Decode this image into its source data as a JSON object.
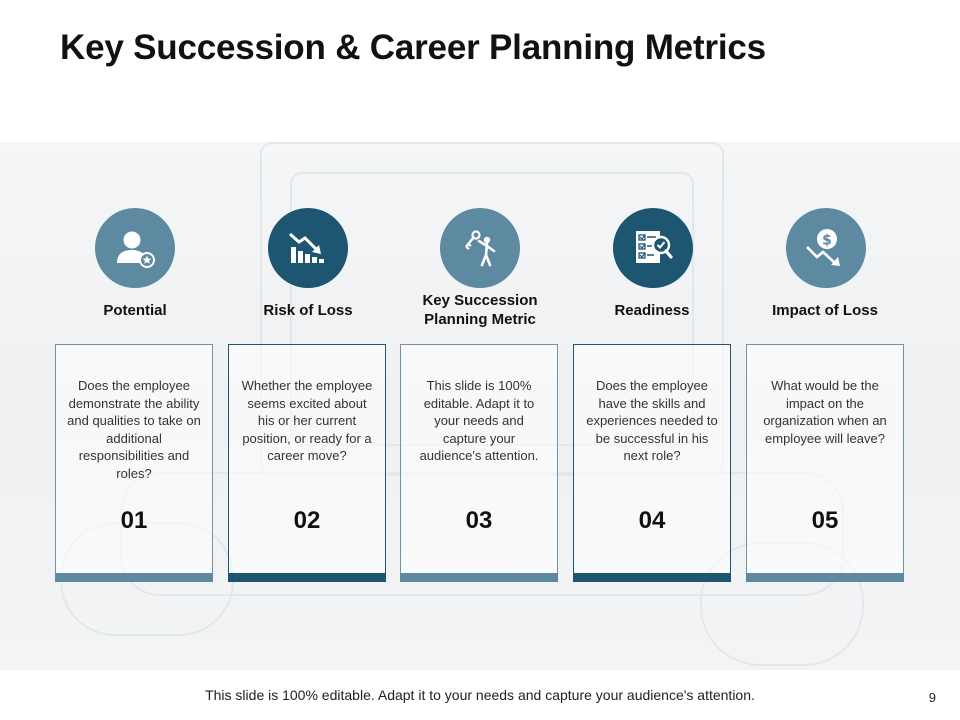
{
  "title": "Key Succession & Career Planning Metrics",
  "metrics": [
    {
      "label": "Potential",
      "icon": "user-star-icon",
      "description": "Does the employee demonstrate the ability and qualities to take on additional responsibilities and roles?",
      "number": "01",
      "accent": "#5d8aa1"
    },
    {
      "label": "Risk of Loss",
      "icon": "declining-chart-icon",
      "description": "Whether the employee seems excited about his or her current position, or ready for a career move?",
      "number": "02",
      "accent": "#1c5670"
    },
    {
      "label": "Key Succession Planning Metric",
      "icon": "person-key-icon",
      "description": "This slide is 100% editable. Adapt it to your needs and capture your audience's attention.",
      "number": "03",
      "accent": "#5d8aa1"
    },
    {
      "label": "Readiness",
      "icon": "checklist-magnifier-icon",
      "description": "Does the employee have the skills and experiences needed to be successful in his next role?",
      "number": "04",
      "accent": "#1c5670"
    },
    {
      "label": "Impact of Loss",
      "icon": "dollar-loss-icon",
      "description": "What would be the impact on the organization when an employee will leave?",
      "number": "05",
      "accent": "#5d8aa1"
    }
  ],
  "footer": "This slide is 100% editable. Adapt it to your needs and capture your audience's attention.",
  "page_number": "9"
}
